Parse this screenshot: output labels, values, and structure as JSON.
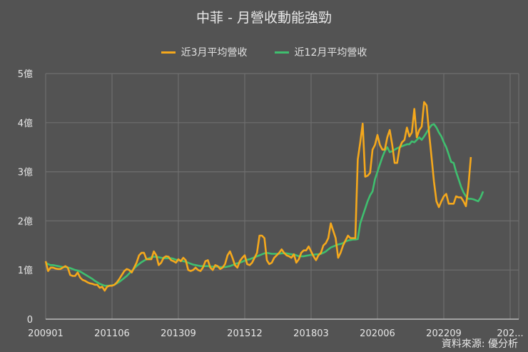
{
  "title": "中菲 - 月營收動能強勁",
  "source": "資料來源: 優分析",
  "legend": [
    {
      "label": "近3月平均營收",
      "color": "#f5a81c"
    },
    {
      "label": "近12月平均營收",
      "color": "#3fbf6f"
    }
  ],
  "chart_data": {
    "type": "line",
    "title": "中菲 - 月營收動能強勁",
    "xlabel": "",
    "ylabel": "",
    "yticks": [
      "0",
      "1億",
      "2億",
      "3億",
      "4億",
      "5億"
    ],
    "ylim": [
      0,
      5
    ],
    "xticks": [
      "200901",
      "201106",
      "201309",
      "201512",
      "201803",
      "202006",
      "202209",
      "202..."
    ],
    "grid": true,
    "legend_position": "top",
    "x_start": "200901",
    "x_step": "1 month",
    "series": [
      {
        "name": "近3月平均營收",
        "color": "#f5a81c",
        "values": [
          1.18,
          0.98,
          1.05,
          1.05,
          1.03,
          1.02,
          1.02,
          1.05,
          1.08,
          1.05,
          0.9,
          0.88,
          0.88,
          0.95,
          0.85,
          0.8,
          0.78,
          0.75,
          0.73,
          0.72,
          0.7,
          0.7,
          0.64,
          0.66,
          0.58,
          0.66,
          0.68,
          0.68,
          0.7,
          0.75,
          0.82,
          0.9,
          0.98,
          1.02,
          1.0,
          0.95,
          1.05,
          1.15,
          1.3,
          1.35,
          1.35,
          1.22,
          1.22,
          1.22,
          1.38,
          1.3,
          1.1,
          1.15,
          1.25,
          1.28,
          1.27,
          1.2,
          1.18,
          1.15,
          1.22,
          1.18,
          1.25,
          1.2,
          1.0,
          0.98,
          1.0,
          1.05,
          1.0,
          0.98,
          1.05,
          1.18,
          1.2,
          1.05,
          1.0,
          1.1,
          1.08,
          1.02,
          1.05,
          1.12,
          1.3,
          1.38,
          1.25,
          1.1,
          1.05,
          1.18,
          1.25,
          1.3,
          1.12,
          1.1,
          1.15,
          1.25,
          1.35,
          1.7,
          1.7,
          1.65,
          1.2,
          1.12,
          1.15,
          1.25,
          1.3,
          1.35,
          1.42,
          1.35,
          1.3,
          1.28,
          1.25,
          1.32,
          1.15,
          1.22,
          1.35,
          1.4,
          1.4,
          1.48,
          1.38,
          1.28,
          1.2,
          1.3,
          1.35,
          1.5,
          1.55,
          1.65,
          1.95,
          1.8,
          1.65,
          1.25,
          1.35,
          1.5,
          1.6,
          1.7,
          1.65,
          1.65,
          1.65,
          3.25,
          3.6,
          3.98,
          2.9,
          2.92,
          2.98,
          3.45,
          3.55,
          3.75,
          3.55,
          3.45,
          3.45,
          3.7,
          3.85,
          3.55,
          3.18,
          3.18,
          3.48,
          3.6,
          3.65,
          3.9,
          3.72,
          3.8,
          4.28,
          3.7,
          3.85,
          3.92,
          4.42,
          4.35,
          3.8,
          3.3,
          2.8,
          2.4,
          2.28,
          2.4,
          2.5,
          2.55,
          2.35,
          2.35,
          2.35,
          2.5,
          2.48,
          2.48,
          2.4,
          2.3,
          2.7,
          3.3
        ]
      },
      {
        "name": "近12月平均營收",
        "color": "#3fbf6f",
        "values": [
          1.15,
          1.12,
          1.1,
          1.1,
          1.09,
          1.08,
          1.07,
          1.06,
          1.06,
          1.05,
          1.04,
          1.02,
          1.0,
          0.99,
          0.97,
          0.94,
          0.91,
          0.88,
          0.85,
          0.82,
          0.78,
          0.75,
          0.72,
          0.7,
          0.68,
          0.68,
          0.68,
          0.69,
          0.7,
          0.73,
          0.76,
          0.8,
          0.84,
          0.88,
          0.93,
          0.98,
          1.03,
          1.08,
          1.12,
          1.16,
          1.19,
          1.22,
          1.24,
          1.26,
          1.27,
          1.27,
          1.26,
          1.25,
          1.24,
          1.24,
          1.24,
          1.24,
          1.23,
          1.21,
          1.2,
          1.19,
          1.18,
          1.17,
          1.15,
          1.13,
          1.11,
          1.1,
          1.09,
          1.08,
          1.08,
          1.08,
          1.08,
          1.07,
          1.07,
          1.07,
          1.07,
          1.06,
          1.06,
          1.06,
          1.07,
          1.08,
          1.1,
          1.12,
          1.14,
          1.15,
          1.17,
          1.19,
          1.21,
          1.22,
          1.24,
          1.26,
          1.28,
          1.3,
          1.32,
          1.34,
          1.35,
          1.34,
          1.33,
          1.33,
          1.33,
          1.33,
          1.34,
          1.34,
          1.34,
          1.33,
          1.32,
          1.32,
          1.3,
          1.28,
          1.28,
          1.28,
          1.29,
          1.3,
          1.31,
          1.31,
          1.32,
          1.32,
          1.33,
          1.35,
          1.38,
          1.42,
          1.46,
          1.48,
          1.5,
          1.52,
          1.53,
          1.55,
          1.58,
          1.6,
          1.61,
          1.62,
          1.62,
          1.63,
          1.95,
          2.1,
          2.25,
          2.4,
          2.52,
          2.6,
          2.85,
          3.0,
          3.15,
          3.3,
          3.42,
          3.5,
          3.4,
          3.42,
          3.45,
          3.48,
          3.5,
          3.52,
          3.54,
          3.56,
          3.56,
          3.62,
          3.6,
          3.65,
          3.7,
          3.65,
          3.72,
          3.8,
          3.88,
          3.95,
          3.97,
          3.9,
          3.8,
          3.72,
          3.6,
          3.5,
          3.35,
          3.2,
          3.18,
          3.0,
          2.85,
          2.7,
          2.58,
          2.5,
          2.45,
          2.45,
          2.44,
          2.42,
          2.4,
          2.48,
          2.6
        ]
      }
    ]
  }
}
